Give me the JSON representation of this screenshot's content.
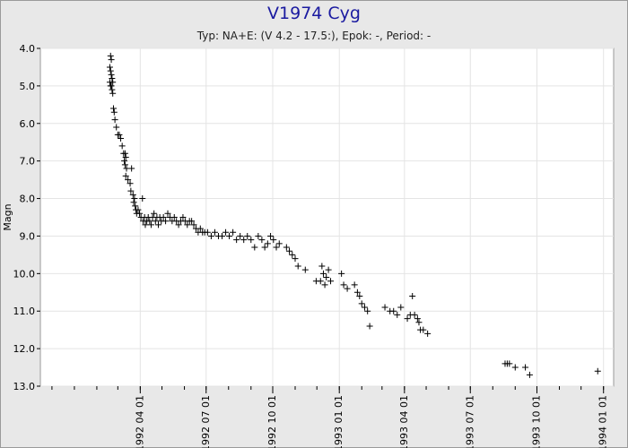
{
  "chart_data": {
    "type": "scatter",
    "title": "V1974 Cyg",
    "subtitle": "Typ: NA+E: (V 4.2 - 17.5:), Epok: -, Period: -",
    "ylabel": "Magn",
    "xlabel": "",
    "xlim": [
      "1991-11-15",
      "1994-01-15"
    ],
    "ylim": [
      4.0,
      13.0
    ],
    "y_inverted": true,
    "y_ticks": [
      "4.0",
      "5.0",
      "6.0",
      "7.0",
      "8.0",
      "9.0",
      "10.0",
      "11.0",
      "12.0",
      "13.0"
    ],
    "x_ticks": [
      {
        "date": "1992-04-01",
        "label": "1992 04 01"
      },
      {
        "date": "1992-07-01",
        "label": "1992 07 01"
      },
      {
        "date": "1992-10-01",
        "label": "1992 10 01"
      },
      {
        "date": "1993-01-01",
        "label": "1993 01 01"
      },
      {
        "date": "1993-04-01",
        "label": "1993 04 01"
      },
      {
        "date": "1993-07-01",
        "label": "1993 07 01"
      },
      {
        "date": "1993-10-01",
        "label": "1993 10 01"
      },
      {
        "date": "1994-01-01",
        "label": "1994 01 01"
      }
    ],
    "grid": true,
    "marker": "+",
    "colors": {
      "plot_bg": "#ffffff",
      "page_bg": "#e8e8e8",
      "title": "#1a1aa0",
      "marker": "#000000",
      "grid": "#e4e4e4"
    },
    "points": [
      [
        "1992-02-20",
        4.2
      ],
      [
        "1992-02-21",
        4.3
      ],
      [
        "1992-02-19",
        4.5
      ],
      [
        "1992-02-20",
        4.6
      ],
      [
        "1992-02-21",
        4.7
      ],
      [
        "1992-02-19",
        4.9
      ],
      [
        "1992-02-22",
        4.8
      ],
      [
        "1992-02-21",
        5.0
      ],
      [
        "1992-02-23",
        4.9
      ],
      [
        "1992-02-20",
        5.0
      ],
      [
        "1992-02-22",
        5.1
      ],
      [
        "1992-02-23",
        5.2
      ],
      [
        "1992-02-24",
        5.6
      ],
      [
        "1992-02-25",
        5.7
      ],
      [
        "1992-02-26",
        5.9
      ],
      [
        "1992-02-28",
        6.1
      ],
      [
        "1992-03-01",
        6.3
      ],
      [
        "1992-03-03",
        6.3
      ],
      [
        "1992-03-05",
        6.4
      ],
      [
        "1992-03-07",
        6.6
      ],
      [
        "1992-03-09",
        6.8
      ],
      [
        "1992-03-11",
        6.8
      ],
      [
        "1992-03-12",
        6.9
      ],
      [
        "1992-03-10",
        7.0
      ],
      [
        "1992-03-11",
        7.1
      ],
      [
        "1992-03-13",
        7.2
      ],
      [
        "1992-03-12",
        7.4
      ],
      [
        "1992-03-15",
        7.5
      ],
      [
        "1992-03-18",
        7.6
      ],
      [
        "1992-03-20",
        7.2
      ],
      [
        "1992-03-19",
        7.8
      ],
      [
        "1992-03-22",
        7.9
      ],
      [
        "1992-03-24",
        8.0
      ],
      [
        "1992-03-23",
        8.1
      ],
      [
        "1992-03-25",
        8.2
      ],
      [
        "1992-03-26",
        8.3
      ],
      [
        "1992-03-27",
        8.4
      ],
      [
        "1992-03-29",
        8.3
      ],
      [
        "1992-03-31",
        8.4
      ],
      [
        "1992-04-02",
        8.5
      ],
      [
        "1992-04-04",
        8.0
      ],
      [
        "1992-04-05",
        8.6
      ],
      [
        "1992-04-07",
        8.5
      ],
      [
        "1992-04-08",
        8.7
      ],
      [
        "1992-04-10",
        8.6
      ],
      [
        "1992-04-12",
        8.5
      ],
      [
        "1992-04-14",
        8.6
      ],
      [
        "1992-04-16",
        8.7
      ],
      [
        "1992-04-18",
        8.5
      ],
      [
        "1992-04-20",
        8.4
      ],
      [
        "1992-04-22",
        8.6
      ],
      [
        "1992-04-24",
        8.5
      ],
      [
        "1992-04-26",
        8.7
      ],
      [
        "1992-04-28",
        8.5
      ],
      [
        "1992-04-30",
        8.6
      ],
      [
        "1992-05-03",
        8.5
      ],
      [
        "1992-05-06",
        8.6
      ],
      [
        "1992-05-09",
        8.4
      ],
      [
        "1992-05-12",
        8.5
      ],
      [
        "1992-05-15",
        8.6
      ],
      [
        "1992-05-18",
        8.5
      ],
      [
        "1992-05-21",
        8.6
      ],
      [
        "1992-05-24",
        8.7
      ],
      [
        "1992-05-27",
        8.6
      ],
      [
        "1992-05-30",
        8.5
      ],
      [
        "1992-06-02",
        8.6
      ],
      [
        "1992-06-05",
        8.7
      ],
      [
        "1992-06-08",
        8.6
      ],
      [
        "1992-06-11",
        8.6
      ],
      [
        "1992-06-14",
        8.7
      ],
      [
        "1992-06-17",
        8.8
      ],
      [
        "1992-06-20",
        8.9
      ],
      [
        "1992-06-23",
        8.8
      ],
      [
        "1992-06-26",
        8.9
      ],
      [
        "1992-06-29",
        8.9
      ],
      [
        "1992-07-03",
        8.9
      ],
      [
        "1992-07-08",
        9.0
      ],
      [
        "1992-07-13",
        8.9
      ],
      [
        "1992-07-18",
        9.0
      ],
      [
        "1992-07-23",
        9.0
      ],
      [
        "1992-07-28",
        8.9
      ],
      [
        "1992-08-02",
        9.0
      ],
      [
        "1992-08-07",
        8.9
      ],
      [
        "1992-08-12",
        9.1
      ],
      [
        "1992-08-17",
        9.0
      ],
      [
        "1992-08-22",
        9.1
      ],
      [
        "1992-08-27",
        9.0
      ],
      [
        "1992-09-01",
        9.1
      ],
      [
        "1992-09-06",
        9.3
      ],
      [
        "1992-09-11",
        9.0
      ],
      [
        "1992-09-16",
        9.1
      ],
      [
        "1992-09-20",
        9.3
      ],
      [
        "1992-09-24",
        9.2
      ],
      [
        "1992-09-28",
        9.0
      ],
      [
        "1992-10-02",
        9.1
      ],
      [
        "1992-10-06",
        9.3
      ],
      [
        "1992-10-10",
        9.2
      ],
      [
        "1992-10-20",
        9.3
      ],
      [
        "1992-10-24",
        9.4
      ],
      [
        "1992-10-28",
        9.5
      ],
      [
        "1992-11-01",
        9.6
      ],
      [
        "1992-11-05",
        9.8
      ],
      [
        "1992-11-15",
        9.9
      ],
      [
        "1992-11-30",
        10.2
      ],
      [
        "1992-12-06",
        10.2
      ],
      [
        "1992-12-08",
        9.8
      ],
      [
        "1992-12-10",
        10.0
      ],
      [
        "1992-12-12",
        10.3
      ],
      [
        "1992-12-14",
        10.1
      ],
      [
        "1992-12-17",
        9.9
      ],
      [
        "1992-12-20",
        10.2
      ],
      [
        "1993-01-04",
        10.0
      ],
      [
        "1993-01-07",
        10.3
      ],
      [
        "1993-01-12",
        10.4
      ],
      [
        "1993-01-22",
        10.3
      ],
      [
        "1993-01-26",
        10.5
      ],
      [
        "1993-01-29",
        10.6
      ],
      [
        "1993-02-01",
        10.8
      ],
      [
        "1993-02-05",
        10.9
      ],
      [
        "1993-02-09",
        11.0
      ],
      [
        "1993-02-12",
        11.4
      ],
      [
        "1993-03-05",
        10.9
      ],
      [
        "1993-03-12",
        11.0
      ],
      [
        "1993-03-17",
        11.0
      ],
      [
        "1993-03-22",
        11.1
      ],
      [
        "1993-03-27",
        10.9
      ],
      [
        "1993-04-05",
        11.2
      ],
      [
        "1993-04-09",
        11.1
      ],
      [
        "1993-04-12",
        10.6
      ],
      [
        "1993-04-15",
        11.1
      ],
      [
        "1993-04-19",
        11.2
      ],
      [
        "1993-04-21",
        11.3
      ],
      [
        "1993-04-23",
        11.5
      ],
      [
        "1993-04-27",
        11.5
      ],
      [
        "1993-05-03",
        11.6
      ],
      [
        "1993-08-18",
        12.4
      ],
      [
        "1993-08-21",
        12.4
      ],
      [
        "1993-08-24",
        12.4
      ],
      [
        "1993-09-01",
        12.5
      ],
      [
        "1993-09-15",
        12.5
      ],
      [
        "1993-09-21",
        12.7
      ],
      [
        "1993-12-24",
        12.6
      ]
    ]
  }
}
